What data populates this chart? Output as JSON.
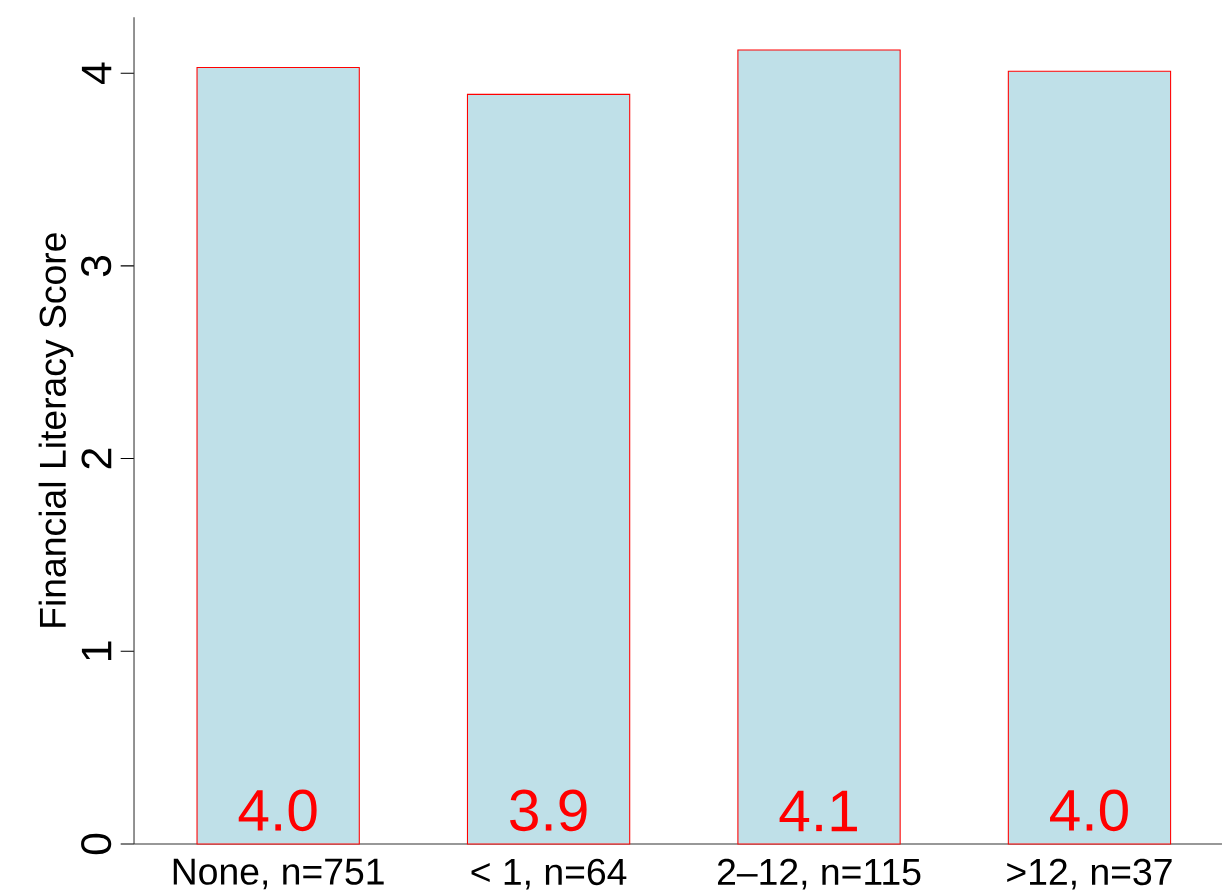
{
  "chart_data": {
    "type": "bar",
    "ylabel": "Financial Literacy Score",
    "categories": [
      "None, n=751",
      "< 1, n=64",
      "2–12, n=115",
      ">12, n=37"
    ],
    "values": [
      4.03,
      3.89,
      4.12,
      4.01
    ],
    "value_labels": [
      "4.0",
      "3.9",
      "4.1",
      "4.0"
    ],
    "color": "#bfe0e8",
    "ylim": [
      0,
      4.29
    ],
    "yticks": [
      0,
      1,
      2,
      3,
      4
    ],
    "grid": false
  }
}
